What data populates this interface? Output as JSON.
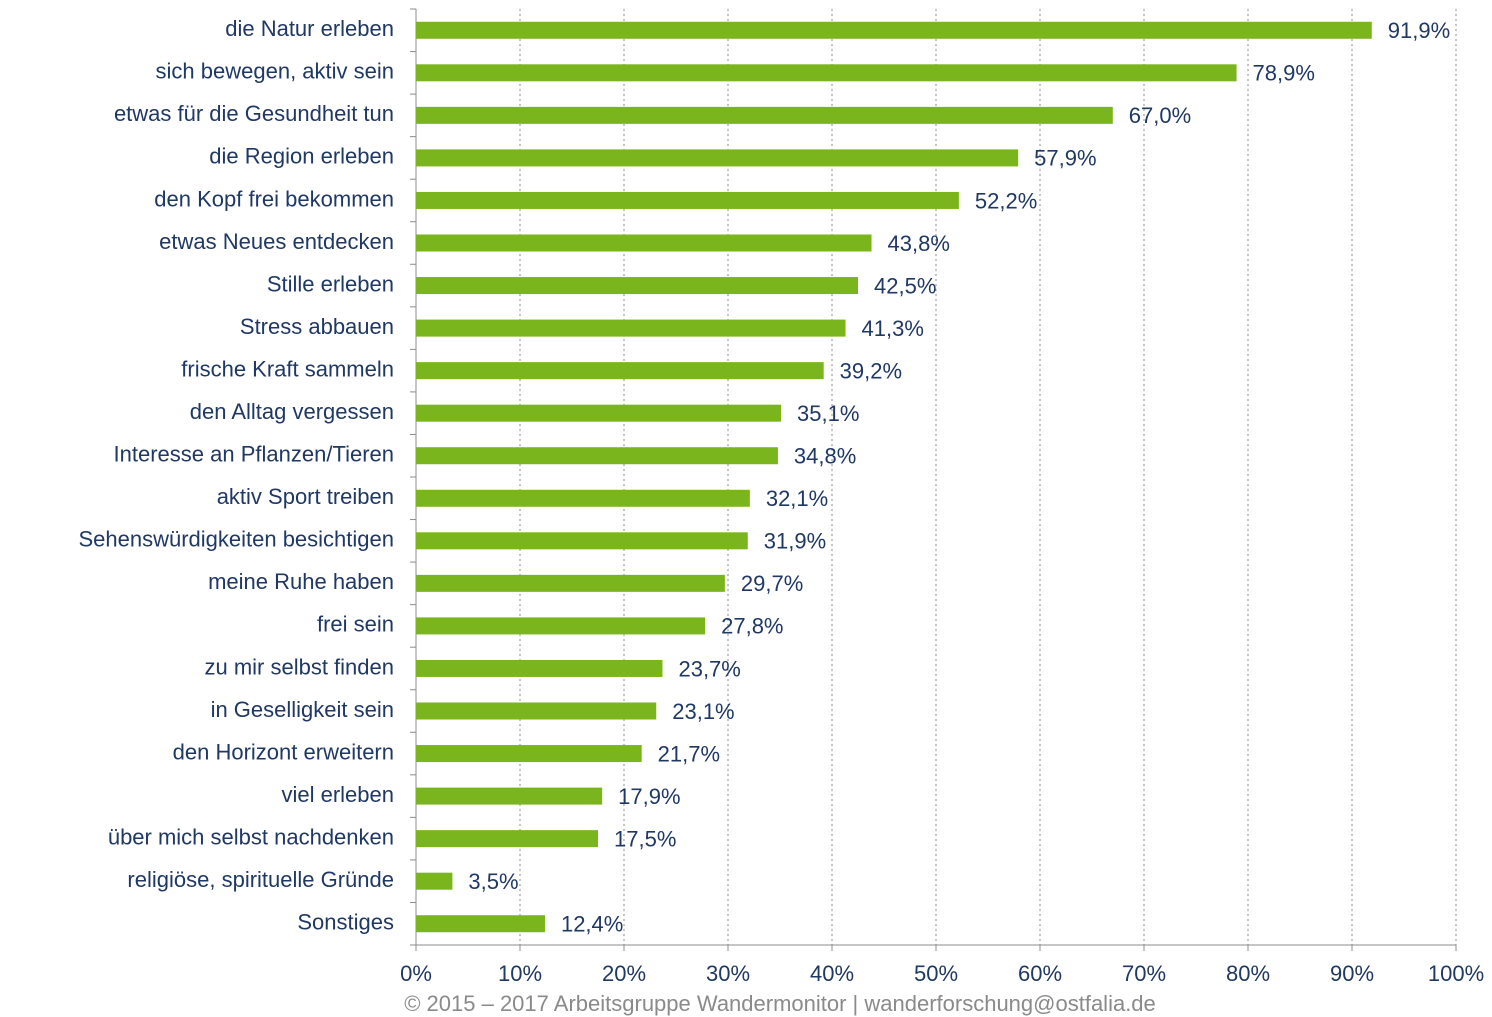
{
  "chart_data": {
    "type": "barh",
    "categories": [
      "die Natur erleben",
      "sich bewegen, aktiv sein",
      "etwas für die Gesundheit tun",
      "die Region erleben",
      "den Kopf frei bekommen",
      "etwas Neues entdecken",
      "Stille erleben",
      "Stress abbauen",
      "frische Kraft sammeln",
      "den Alltag vergessen",
      "Interesse an Pflanzen/Tieren",
      "aktiv Sport treiben",
      "Sehenswürdigkeiten besichtigen",
      "meine Ruhe haben",
      "frei sein",
      "zu mir selbst finden",
      "in Geselligkeit sein",
      "den Horizont erweitern",
      "viel erleben",
      "über mich selbst nachdenken",
      "religiöse, spirituelle Gründe",
      "Sonstiges"
    ],
    "values": [
      91.9,
      78.9,
      67.0,
      57.9,
      52.2,
      43.8,
      42.5,
      41.3,
      39.2,
      35.1,
      34.8,
      32.1,
      31.9,
      29.7,
      27.8,
      23.7,
      23.1,
      21.7,
      17.9,
      17.5,
      3.5,
      12.4
    ],
    "value_labels": [
      "91,9%",
      "78,9%",
      "67,0%",
      "57,9%",
      "52,2%",
      "43,8%",
      "42,5%",
      "41,3%",
      "39,2%",
      "35,1%",
      "34,8%",
      "32,1%",
      "31,9%",
      "29,7%",
      "27,8%",
      "23,7%",
      "23,1%",
      "21,7%",
      "17,9%",
      "17,5%",
      "3,5%",
      "12,4%"
    ],
    "color": "#7ab51d",
    "xlim": [
      0,
      100
    ],
    "xticks": [
      {
        "value": 0,
        "label": "0%"
      },
      {
        "value": 10,
        "label": "10%"
      },
      {
        "value": 20,
        "label": "20%"
      },
      {
        "value": 30,
        "label": "30%"
      },
      {
        "value": 40,
        "label": "40%"
      },
      {
        "value": 50,
        "label": "50%"
      },
      {
        "value": 60,
        "label": "60%"
      },
      {
        "value": 70,
        "label": "70%"
      },
      {
        "value": 80,
        "label": "80%"
      },
      {
        "value": 90,
        "label": "90%"
      },
      {
        "value": 100,
        "label": "100%"
      }
    ],
    "grid": true,
    "footer": "© 2015 – 2017 Arbeitsgruppe Wandermonitor | wanderforschung@ostfalia.de"
  }
}
